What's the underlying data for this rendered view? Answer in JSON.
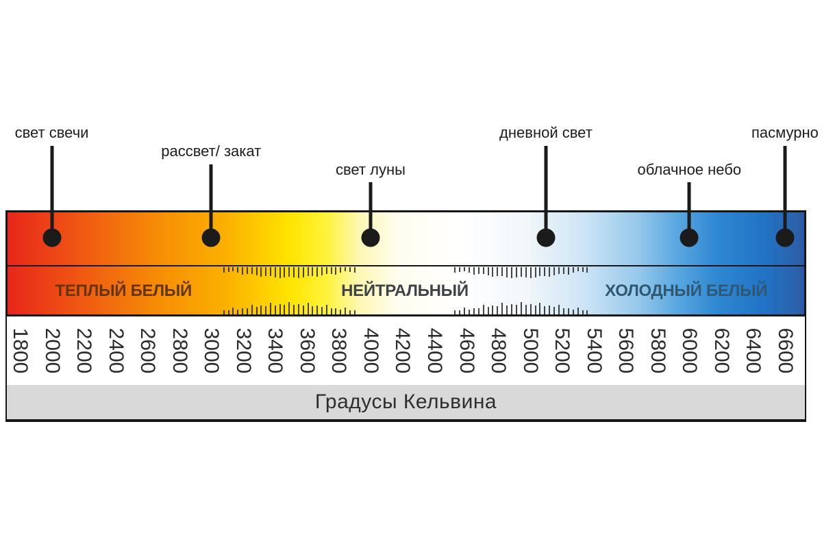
{
  "chart_data": {
    "type": "scale",
    "title": "Градусы Кельвина",
    "unit": "K",
    "axis": {
      "min": 1800,
      "max": 6600,
      "step": 200,
      "tick_labels": [
        "1800",
        "2000",
        "2200",
        "2400",
        "2600",
        "2800",
        "3000",
        "3200",
        "3400",
        "3600",
        "3800",
        "4000",
        "4200",
        "4400",
        "4600",
        "4800",
        "5000",
        "5200",
        "5400",
        "5600",
        "5800",
        "6000",
        "6200",
        "6400",
        "6600"
      ]
    },
    "zones": [
      {
        "label": "ТЕПЛЫЙ БЕЛЫЙ",
        "range_k": [
          1800,
          3100
        ],
        "text_color": "#64350e"
      },
      {
        "label": "НЕЙТРАЛЬНЫЙ",
        "range_k": [
          3900,
          4530
        ],
        "text_color": "#3f4347"
      },
      {
        "label": "ХОЛОДНЫЙ БЕЛЫЙ",
        "range_k": [
          5360,
          6600
        ],
        "text_color": "#2f5873"
      }
    ],
    "transition_zones_k": [
      [
        3080,
        3900
      ],
      [
        4530,
        5360
      ]
    ],
    "markers": [
      {
        "label": "свет свечи",
        "kelvin": 2000,
        "row": "high"
      },
      {
        "label": "рассвет/ закат",
        "kelvin": 3000,
        "row": "mid"
      },
      {
        "label": "свет луны",
        "kelvin": 4000,
        "row": "low"
      },
      {
        "label": "дневной свет",
        "kelvin": 5100,
        "row": "high"
      },
      {
        "label": "облачное небо",
        "kelvin": 6000,
        "row": "low"
      },
      {
        "label": "пасмурно",
        "kelvin": 6600,
        "row": "high"
      }
    ],
    "gradient_stops": [
      {
        "pos": 0.0,
        "color": "#e8261a"
      },
      {
        "pos": 0.1,
        "color": "#f05c12"
      },
      {
        "pos": 0.19,
        "color": "#f68d06"
      },
      {
        "pos": 0.275,
        "color": "#fbb100"
      },
      {
        "pos": 0.355,
        "color": "#ffe400"
      },
      {
        "pos": 0.4,
        "color": "#fff23a"
      },
      {
        "pos": 0.44,
        "color": "#fdf7b0"
      },
      {
        "pos": 0.49,
        "color": "#fffdf0"
      },
      {
        "pos": 0.57,
        "color": "#ffffff"
      },
      {
        "pos": 0.65,
        "color": "#f2f7fb"
      },
      {
        "pos": 0.72,
        "color": "#cfe5f5"
      },
      {
        "pos": 0.79,
        "color": "#98c9ec"
      },
      {
        "pos": 0.84,
        "color": "#5aa7e0"
      },
      {
        "pos": 0.89,
        "color": "#2f88d2"
      },
      {
        "pos": 0.95,
        "color": "#2173c5"
      },
      {
        "pos": 0.99,
        "color": "#2b62ad"
      },
      {
        "pos": 1.0,
        "color": "#2d57a0"
      }
    ],
    "marker_color": "#1b1b1b",
    "footer_bg": "#d9d9d9"
  }
}
